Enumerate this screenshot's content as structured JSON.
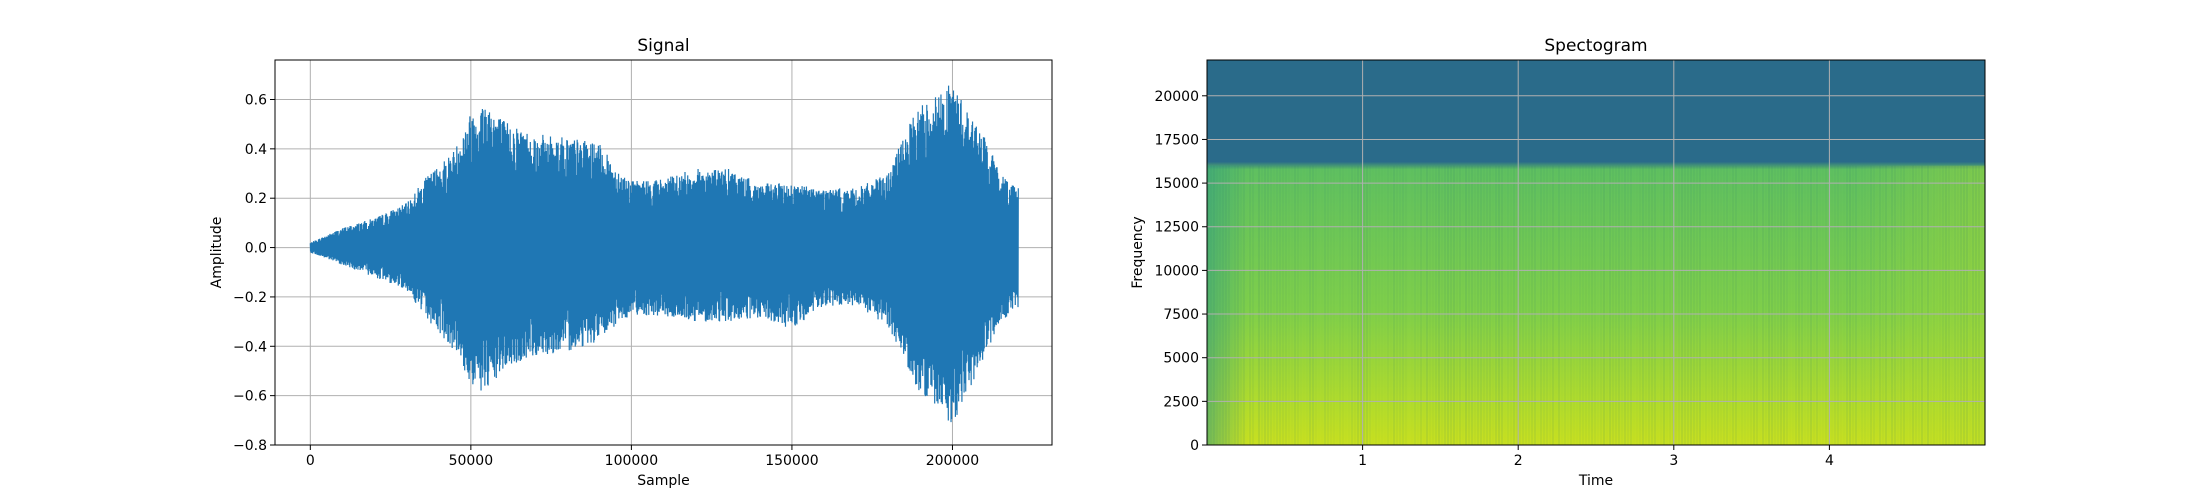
{
  "colors": {
    "signal_line": "#1f77b4",
    "grid": "#b0b0b0",
    "axis": "#000000",
    "spec_high_freq": "#2a6b8a",
    "spec_mid": "#5fc060",
    "spec_low": "#c8e020"
  },
  "chart_data": [
    {
      "type": "line",
      "title": "Signal",
      "xlabel": "Sample",
      "ylabel": "Amplitude",
      "xlim": [
        -11000,
        231000
      ],
      "ylim": [
        -0.8,
        0.76
      ],
      "x_ticks": [
        0,
        50000,
        100000,
        150000,
        200000
      ],
      "x_tick_labels": [
        "0",
        "50000",
        "100000",
        "150000",
        "200000"
      ],
      "y_ticks": [
        -0.8,
        -0.6,
        -0.4,
        -0.2,
        0.0,
        0.2,
        0.4,
        0.6
      ],
      "y_tick_labels": [
        "−0.8",
        "−0.6",
        "−0.4",
        "−0.2",
        "0.0",
        "0.2",
        "0.4",
        "0.6"
      ],
      "grid": true,
      "n_samples": 220500,
      "envelope": {
        "x": [
          0,
          10000,
          20000,
          30000,
          35000,
          45000,
          50000,
          55000,
          60000,
          70000,
          80000,
          90000,
          95000,
          100000,
          110000,
          120000,
          130000,
          140000,
          150000,
          160000,
          170000,
          180000,
          185000,
          190000,
          195000,
          200000,
          205000,
          210000,
          215000,
          220000
        ],
        "pos": [
          0.02,
          0.08,
          0.12,
          0.18,
          0.27,
          0.4,
          0.55,
          0.6,
          0.52,
          0.46,
          0.45,
          0.42,
          0.33,
          0.27,
          0.28,
          0.32,
          0.32,
          0.26,
          0.26,
          0.24,
          0.24,
          0.3,
          0.46,
          0.58,
          0.62,
          0.67,
          0.55,
          0.45,
          0.3,
          0.25
        ],
        "neg": [
          -0.02,
          -0.07,
          -0.12,
          -0.17,
          -0.27,
          -0.42,
          -0.56,
          -0.6,
          -0.5,
          -0.44,
          -0.42,
          -0.38,
          -0.32,
          -0.27,
          -0.28,
          -0.3,
          -0.3,
          -0.29,
          -0.33,
          -0.24,
          -0.24,
          -0.32,
          -0.45,
          -0.6,
          -0.65,
          -0.72,
          -0.58,
          -0.45,
          -0.3,
          -0.25
        ]
      }
    },
    {
      "type": "heatmap",
      "title": "Spectogram",
      "xlabel": "Time",
      "ylabel": "Frequency",
      "xlim": [
        0.0,
        5.0
      ],
      "ylim": [
        0,
        22050
      ],
      "x_ticks": [
        1,
        2,
        3,
        4
      ],
      "x_tick_labels": [
        "1",
        "2",
        "3",
        "4"
      ],
      "y_ticks": [
        0,
        2500,
        5000,
        7500,
        10000,
        12500,
        15000,
        17500,
        20000
      ],
      "y_tick_labels": [
        "0",
        "2500",
        "5000",
        "7500",
        "10000",
        "12500",
        "15000",
        "17500",
        "20000"
      ],
      "grid": true,
      "colormap": "viridis",
      "cutoff_frequency": 16000
    }
  ]
}
